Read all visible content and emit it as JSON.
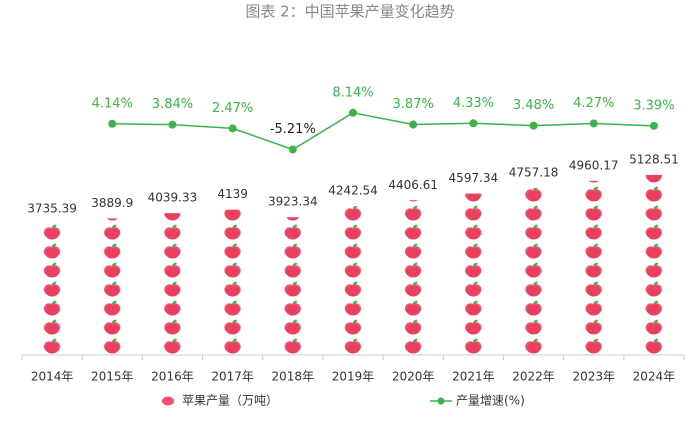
{
  "chart_data": {
    "type": "bar_line",
    "title": "图表 2：中国苹果产量变化趋势",
    "categories": [
      "2014年",
      "2015年",
      "2016年",
      "2017年",
      "2018年",
      "2019年",
      "2020年",
      "2021年",
      "2022年",
      "2023年",
      "2024年"
    ],
    "series": [
      {
        "name": "苹果产量（万吨）",
        "type": "bar",
        "color": "#f0506e",
        "values": [
          3735.39,
          3889.9,
          4039.33,
          4139,
          3923.34,
          4242.54,
          4406.61,
          4597.34,
          4757.18,
          4960.17,
          5128.51
        ]
      },
      {
        "name": "产量增速(%)",
        "type": "line",
        "axis": "y2",
        "color": "#3cb44b",
        "values": [
          null,
          4.14,
          3.84,
          2.47,
          -5.21,
          8.14,
          3.87,
          4.33,
          3.48,
          4.27,
          3.39
        ],
        "value_labels": [
          null,
          "4.14%",
          "3.84%",
          "2.47%",
          "-5.21%",
          "8.14%",
          "3.87%",
          "4.33%",
          "3.48%",
          "4.27%",
          "3.39%"
        ]
      }
    ],
    "ylim": [
      0,
      9000
    ],
    "y2lim": [
      -80,
      35
    ],
    "grid": false
  }
}
